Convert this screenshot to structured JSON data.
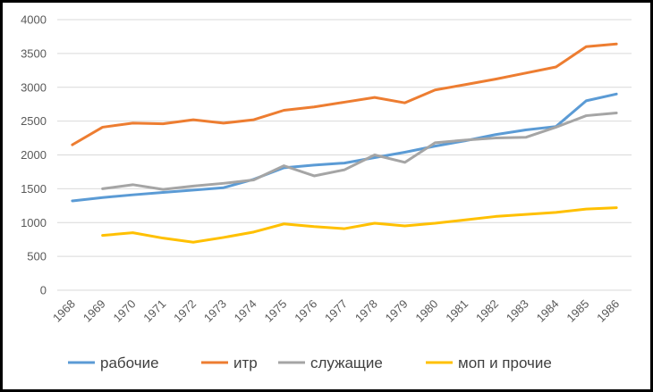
{
  "chart_data": {
    "type": "line",
    "title": "",
    "xlabel": "",
    "ylabel": "",
    "x": [
      "1968",
      "1969",
      "1970",
      "1971",
      "1972",
      "1973",
      "1974",
      "1975",
      "1976",
      "1977",
      "1978",
      "1979",
      "1980",
      "1981",
      "1982",
      "1983",
      "1984",
      "1985",
      "1986"
    ],
    "ylim": [
      0,
      4000
    ],
    "yticks": [
      0,
      500,
      1000,
      1500,
      2000,
      2500,
      3000,
      3500,
      4000
    ],
    "grid": true,
    "legend_position": "bottom",
    "series": [
      {
        "name": "рабочие",
        "color": "#5B9BD5",
        "values": [
          1320,
          1370,
          1410,
          1445,
          1480,
          1515,
          1640,
          1810,
          1850,
          1880,
          1960,
          2040,
          2130,
          2210,
          2300,
          2370,
          2420,
          2800,
          2900
        ]
      },
      {
        "name": "итр",
        "color": "#ED7D31",
        "values": [
          2150,
          2410,
          2470,
          2460,
          2520,
          2470,
          2520,
          2660,
          2710,
          2780,
          2850,
          2770,
          2960,
          3040,
          3120,
          3210,
          3300,
          3600,
          3640
        ]
      },
      {
        "name": "служащие",
        "color": "#A5A5A5",
        "values": [
          null,
          1500,
          1560,
          1490,
          1540,
          1580,
          1630,
          1840,
          1690,
          1780,
          2000,
          1890,
          2180,
          2220,
          2250,
          2260,
          2410,
          2580,
          2620
        ]
      },
      {
        "name": "моп и прочие",
        "color": "#FFC000",
        "values": [
          null,
          810,
          850,
          770,
          710,
          780,
          860,
          980,
          940,
          910,
          990,
          950,
          990,
          1040,
          1090,
          1120,
          1150,
          1200,
          1220
        ]
      }
    ]
  }
}
